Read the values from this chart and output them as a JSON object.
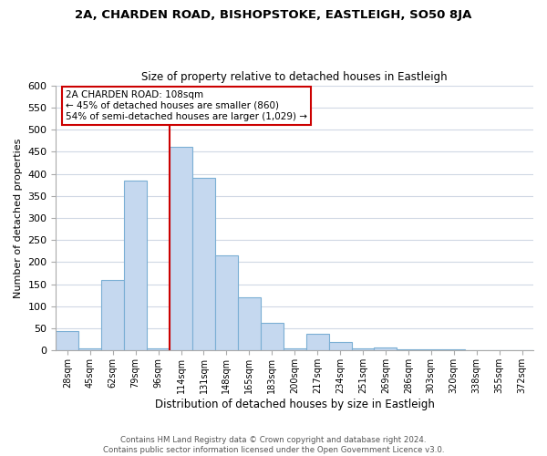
{
  "title1": "2A, CHARDEN ROAD, BISHOPSTOKE, EASTLEIGH, SO50 8JA",
  "title2": "Size of property relative to detached houses in Eastleigh",
  "xlabel": "Distribution of detached houses by size in Eastleigh",
  "ylabel": "Number of detached properties",
  "bar_labels": [
    "28sqm",
    "45sqm",
    "62sqm",
    "79sqm",
    "96sqm",
    "114sqm",
    "131sqm",
    "148sqm",
    "165sqm",
    "183sqm",
    "200sqm",
    "217sqm",
    "234sqm",
    "251sqm",
    "269sqm",
    "286sqm",
    "303sqm",
    "320sqm",
    "338sqm",
    "355sqm",
    "372sqm"
  ],
  "bar_heights": [
    45,
    5,
    160,
    385,
    5,
    460,
    390,
    215,
    120,
    62,
    5,
    37,
    20,
    5,
    8,
    3,
    3,
    2,
    1,
    1,
    1
  ],
  "bar_color": "#c5d8ef",
  "bar_edge_color": "#7bafd4",
  "vline_color": "#cc0000",
  "vline_x_index": 5,
  "annotation_title": "2A CHARDEN ROAD: 108sqm",
  "annotation_line1": "← 45% of detached houses are smaller (860)",
  "annotation_line2": "54% of semi-detached houses are larger (1,029) →",
  "annotation_box_color": "#ffffff",
  "annotation_box_edge": "#cc0000",
  "ylim": [
    0,
    600
  ],
  "yticks": [
    0,
    50,
    100,
    150,
    200,
    250,
    300,
    350,
    400,
    450,
    500,
    550,
    600
  ],
  "footer1": "Contains HM Land Registry data © Crown copyright and database right 2024.",
  "footer2": "Contains public sector information licensed under the Open Government Licence v3.0.",
  "bg_color": "#ffffff",
  "grid_color": "#d0d8e4"
}
